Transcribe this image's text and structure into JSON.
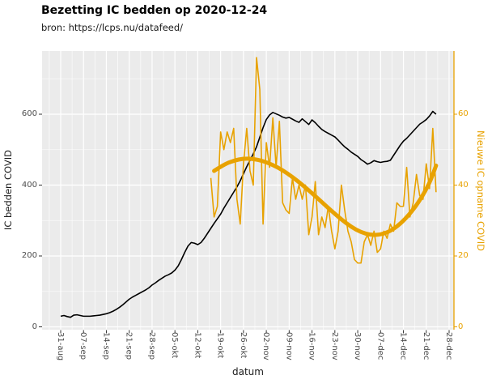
{
  "header": {
    "title": "Bezetting IC bedden op 2020-12-24",
    "subtitle": "bron: https://lcps.nu/datafeed/"
  },
  "chart_data": {
    "type": "line",
    "title": "Bezetting IC bedden op 2020-12-24",
    "subtitle": "bron: https://lcps.nu/datafeed/",
    "panel_bg": "#EBEBEB",
    "grid_color": "#FFFFFF",
    "grid": "on",
    "legend": "none",
    "start_date": "2020-08-31",
    "x_axis": {
      "label": "datum",
      "tick_labels": [
        "31-aug",
        "07-sep",
        "14-sep",
        "21-sep",
        "28-sep",
        "05-okt",
        "12-okt",
        "19-okt",
        "26-okt",
        "02-nov",
        "09-nov",
        "16-nov",
        "23-nov",
        "30-nov",
        "07-dec",
        "14-dec",
        "21-dec",
        "28-dec"
      ],
      "tick_color": "#333333"
    },
    "y_left": {
      "label": "IC bedden COVID",
      "ticks": [
        0,
        200,
        400,
        600
      ],
      "minor_ticks": [
        100,
        300,
        500,
        700
      ],
      "range_shown": [
        0,
        778
      ],
      "text_color": "#4d4d4d"
    },
    "y_right": {
      "label": "Nieuwe IC opname COVID",
      "ticks": [
        0,
        20,
        40,
        60
      ],
      "range_shown": [
        0,
        77.8
      ],
      "color": "#E8A200",
      "axis_line": true
    },
    "series": [
      {
        "name": "IC bedden COVID",
        "axis": "left",
        "color": "#000000",
        "style": "line",
        "width": 1.6,
        "start_day": 0,
        "values": [
          30,
          32,
          29,
          27,
          33,
          34,
          32,
          30,
          30,
          30,
          31,
          32,
          33,
          35,
          37,
          40,
          44,
          49,
          55,
          62,
          70,
          78,
          84,
          89,
          94,
          99,
          104,
          110,
          118,
          124,
          131,
          137,
          143,
          147,
          152,
          160,
          172,
          190,
          210,
          228,
          238,
          236,
          232,
          238,
          250,
          264,
          278,
          292,
          305,
          318,
          335,
          350,
          365,
          380,
          395,
          412,
          432,
          452,
          470,
          488,
          508,
          535,
          562,
          585,
          598,
          605,
          601,
          597,
          592,
          589,
          591,
          586,
          581,
          577,
          587,
          579,
          571,
          584,
          576,
          566,
          557,
          551,
          546,
          541,
          536,
          527,
          517,
          508,
          501,
          493,
          487,
          481,
          472,
          466,
          459,
          463,
          469,
          466,
          464,
          466,
          467,
          470,
          484,
          498,
          512,
          524,
          532,
          542,
          552,
          562,
          572,
          578,
          585,
          595,
          608,
          600
        ]
      },
      {
        "name": "Nieuwe IC opname COVID",
        "axis": "right",
        "color": "#E8A200",
        "style": "line",
        "width": 1.6,
        "start_day": 46,
        "values": [
          42,
          31,
          34,
          55,
          50,
          55,
          52,
          56,
          36,
          29,
          46,
          56,
          44,
          40,
          76,
          67,
          29,
          52,
          45,
          59,
          45,
          58,
          35,
          33,
          32,
          42,
          36,
          40,
          36,
          40,
          26,
          31,
          41,
          26,
          31,
          28,
          34,
          27,
          22,
          27,
          40,
          33,
          27,
          24,
          19,
          18,
          18,
          24,
          26,
          23,
          27,
          21,
          22,
          27,
          25,
          29,
          27,
          35,
          34,
          34,
          45,
          31,
          35,
          43,
          37,
          36,
          46,
          39,
          56,
          38
        ]
      },
      {
        "name": "Nieuwe IC opname COVID (trend)",
        "axis": "right",
        "color": "#E8A200",
        "style": "smooth",
        "width": 5,
        "days": [
          47,
          50,
          53,
          56,
          59,
          62,
          65,
          68,
          71,
          74,
          77,
          80,
          83,
          86,
          89,
          92,
          95,
          98,
          101,
          104,
          107,
          110,
          113,
          115
        ],
        "values": [
          44,
          45.8,
          46.9,
          47.5,
          47.4,
          46.8,
          45.7,
          44.2,
          42.3,
          40.1,
          37.7,
          35.2,
          32.7,
          30.3,
          28.2,
          26.7,
          25.9,
          26,
          27,
          29,
          31.9,
          35.6,
          40.5,
          45.5
        ]
      }
    ]
  }
}
